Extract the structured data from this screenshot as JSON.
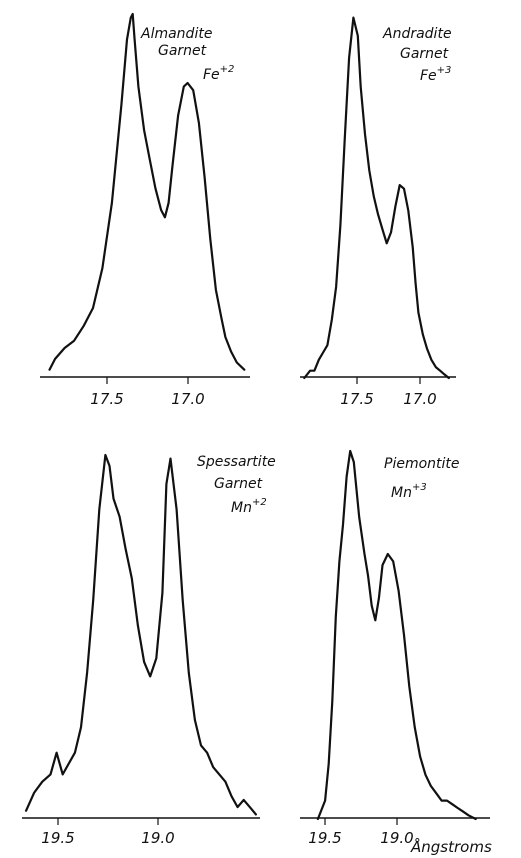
{
  "chart_data": [
    {
      "type": "line",
      "labels": [
        {
          "text": "Almandite"
        },
        {
          "text": "Garnet"
        },
        {
          "text": "Fe",
          "sup": "+2"
        }
      ],
      "x_ticks": [
        "17.5",
        "17.0"
      ],
      "xlim": [
        17.88,
        16.77
      ],
      "ylim": [
        0,
        1
      ],
      "x": [
        17.83,
        17.8,
        17.75,
        17.7,
        17.65,
        17.6,
        17.55,
        17.5,
        17.45,
        17.42,
        17.4,
        17.39,
        17.38,
        17.36,
        17.33,
        17.3,
        17.27,
        17.24,
        17.22,
        17.2,
        17.18,
        17.15,
        17.12,
        17.1,
        17.07,
        17.04,
        17.01,
        16.98,
        16.95,
        16.92,
        16.9,
        16.87,
        16.84,
        16.8
      ],
      "y": [
        0.02,
        0.05,
        0.08,
        0.1,
        0.14,
        0.19,
        0.3,
        0.48,
        0.75,
        0.93,
        0.99,
        1.0,
        0.93,
        0.8,
        0.68,
        0.6,
        0.52,
        0.46,
        0.44,
        0.48,
        0.58,
        0.72,
        0.8,
        0.81,
        0.79,
        0.7,
        0.55,
        0.38,
        0.24,
        0.16,
        0.11,
        0.07,
        0.04,
        0.02
      ]
    },
    {
      "type": "line",
      "labels": [
        {
          "text": "Andradite"
        },
        {
          "text": "Garnet"
        },
        {
          "text": "Fe",
          "sup": "+3"
        }
      ],
      "x_ticks": [
        "17.5",
        "17.0"
      ],
      "xlim": [
        17.83,
        16.75
      ],
      "ylim": [
        0,
        1
      ],
      "x": [
        17.8,
        17.76,
        17.73,
        17.7,
        17.67,
        17.64,
        17.61,
        17.58,
        17.55,
        17.52,
        17.49,
        17.46,
        17.43,
        17.41,
        17.38,
        17.35,
        17.32,
        17.29,
        17.26,
        17.23,
        17.2,
        17.17,
        17.14,
        17.11,
        17.08,
        17.05,
        17.03,
        17.01,
        16.98,
        16.95,
        16.92,
        16.89,
        16.86,
        16.83,
        16.8
      ],
      "y": [
        0.0,
        0.02,
        0.02,
        0.05,
        0.07,
        0.09,
        0.16,
        0.25,
        0.42,
        0.66,
        0.88,
        0.99,
        0.94,
        0.8,
        0.67,
        0.57,
        0.5,
        0.45,
        0.41,
        0.37,
        0.4,
        0.47,
        0.53,
        0.52,
        0.46,
        0.36,
        0.26,
        0.18,
        0.12,
        0.08,
        0.05,
        0.03,
        0.02,
        0.01,
        0.0
      ]
    },
    {
      "type": "line",
      "labels": [
        {
          "text": "Spessartite"
        },
        {
          "text": "Garnet"
        },
        {
          "text": "Mn",
          "sup": "+2"
        }
      ],
      "x_ticks": [
        "19.5",
        "19.0"
      ],
      "xlim": [
        19.72,
        18.55
      ],
      "ylim": [
        0,
        1
      ],
      "x": [
        19.7,
        19.66,
        19.62,
        19.58,
        19.55,
        19.52,
        19.49,
        19.46,
        19.43,
        19.4,
        19.37,
        19.34,
        19.31,
        19.29,
        19.27,
        19.24,
        19.21,
        19.18,
        19.15,
        19.12,
        19.09,
        19.06,
        19.03,
        19.01,
        18.99,
        18.96,
        18.93,
        18.9,
        18.87,
        18.84,
        18.81,
        18.78,
        18.75,
        18.72,
        18.69,
        18.66,
        18.63,
        18.6,
        18.57
      ],
      "y": [
        0.02,
        0.07,
        0.1,
        0.12,
        0.18,
        0.12,
        0.15,
        0.18,
        0.25,
        0.4,
        0.6,
        0.85,
        1.0,
        0.97,
        0.88,
        0.83,
        0.74,
        0.66,
        0.53,
        0.43,
        0.39,
        0.44,
        0.62,
        0.92,
        0.99,
        0.85,
        0.6,
        0.4,
        0.27,
        0.2,
        0.18,
        0.14,
        0.12,
        0.1,
        0.06,
        0.03,
        0.05,
        0.03,
        0.01
      ]
    },
    {
      "type": "line",
      "labels": [
        {
          "text": "Piemontite"
        },
        {
          "text": "Mn",
          "sup": "+3"
        }
      ],
      "x_ticks": [
        "19.5",
        "19.0"
      ],
      "xlim": [
        19.58,
        18.52
      ],
      "ylim": [
        0,
        1
      ],
      "x": [
        19.48,
        19.44,
        19.42,
        19.4,
        19.38,
        19.36,
        19.34,
        19.32,
        19.3,
        19.28,
        19.25,
        19.22,
        19.2,
        19.18,
        19.16,
        19.14,
        19.12,
        19.09,
        19.06,
        19.03,
        19.0,
        18.97,
        18.94,
        18.91,
        18.88,
        18.85,
        18.82,
        18.79,
        18.76,
        18.73,
        18.7,
        18.67,
        18.64,
        18.6
      ],
      "y": [
        0.0,
        0.05,
        0.15,
        0.32,
        0.55,
        0.7,
        0.8,
        0.93,
        1.0,
        0.97,
        0.82,
        0.72,
        0.66,
        0.58,
        0.54,
        0.6,
        0.69,
        0.72,
        0.7,
        0.62,
        0.5,
        0.36,
        0.25,
        0.17,
        0.12,
        0.09,
        0.07,
        0.05,
        0.05,
        0.04,
        0.03,
        0.02,
        0.01,
        0.0
      ]
    }
  ],
  "unit_label": "Ångstroms"
}
